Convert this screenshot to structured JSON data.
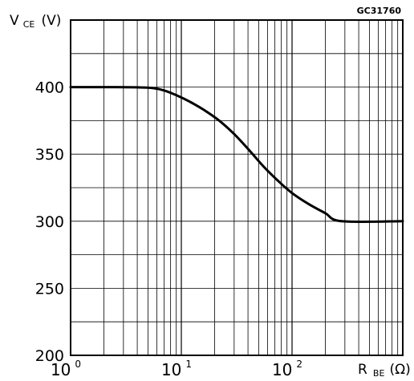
{
  "figure_id": "GC31760",
  "chart_data": {
    "type": "line",
    "x_scale": "log",
    "xlim": [
      1,
      1000
    ],
    "ylim": [
      200,
      450
    ],
    "grid": true,
    "ylabel": {
      "main": "V",
      "sub": "CE",
      "unit": "(V)"
    },
    "xlabel": {
      "main": "R",
      "sub": "BE",
      "unit": "(Ω)"
    },
    "y_ticks": [
      {
        "value": 200,
        "label": "200"
      },
      {
        "value": 250,
        "label": "250"
      },
      {
        "value": 300,
        "label": "300"
      },
      {
        "value": 350,
        "label": "350"
      },
      {
        "value": 400,
        "label": "400"
      }
    ],
    "x_ticks": [
      {
        "value": 1,
        "base": "10",
        "exp": "0"
      },
      {
        "value": 10,
        "base": "10",
        "exp": "1"
      },
      {
        "value": 100,
        "base": "10",
        "exp": "2"
      }
    ],
    "series": [
      {
        "x": [
          1,
          2,
          4,
          5.5,
          7,
          9,
          12,
          16,
          22,
          30,
          42,
          55,
          75,
          100,
          140,
          200,
          280,
          1000
        ],
        "y": [
          400,
          400,
          399.8,
          399.3,
          397.5,
          394,
          389,
          383,
          375,
          365,
          352,
          341,
          330,
          321,
          313,
          306,
          300,
          300
        ]
      }
    ]
  }
}
